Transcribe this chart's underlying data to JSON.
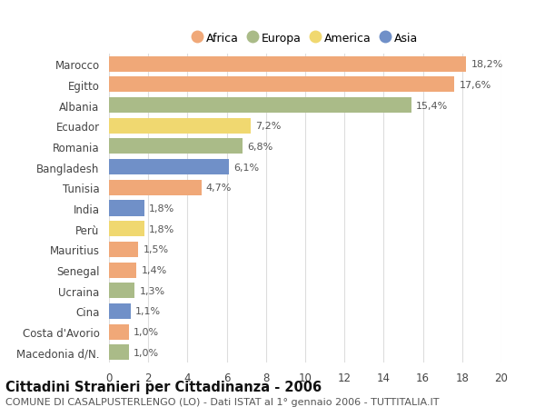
{
  "countries": [
    "Marocco",
    "Egitto",
    "Albania",
    "Ecuador",
    "Romania",
    "Bangladesh",
    "Tunisia",
    "India",
    "Perù",
    "Mauritius",
    "Senegal",
    "Ucraina",
    "Cina",
    "Costa d'Avorio",
    "Macedonia d/N."
  ],
  "values": [
    18.2,
    17.6,
    15.4,
    7.2,
    6.8,
    6.1,
    4.7,
    1.8,
    1.8,
    1.5,
    1.4,
    1.3,
    1.1,
    1.0,
    1.0
  ],
  "labels": [
    "18,2%",
    "17,6%",
    "15,4%",
    "7,2%",
    "6,8%",
    "6,1%",
    "4,7%",
    "1,8%",
    "1,8%",
    "1,5%",
    "1,4%",
    "1,3%",
    "1,1%",
    "1,0%",
    "1,0%"
  ],
  "continents": [
    "Africa",
    "Africa",
    "Europa",
    "America",
    "Europa",
    "Asia",
    "Africa",
    "Asia",
    "America",
    "Africa",
    "Africa",
    "Europa",
    "Asia",
    "Africa",
    "Europa"
  ],
  "colors": {
    "Africa": "#F0A878",
    "Europa": "#AABB88",
    "America": "#F0D870",
    "Asia": "#7090C8"
  },
  "legend_order": [
    "Africa",
    "Europa",
    "America",
    "Asia"
  ],
  "xlim": [
    0,
    20
  ],
  "xticks": [
    0,
    2,
    4,
    6,
    8,
    10,
    12,
    14,
    16,
    18,
    20
  ],
  "title": "Cittadini Stranieri per Cittadinanza - 2006",
  "subtitle": "COMUNE DI CASALPUSTERLENGO (LO) - Dati ISTAT al 1° gennaio 2006 - TUTTITALIA.IT",
  "background_color": "#FFFFFF",
  "grid_color": "#DDDDDD",
  "bar_height": 0.75,
  "label_fontsize": 8.0,
  "ytick_fontsize": 8.5,
  "xtick_fontsize": 8.5,
  "title_fontsize": 10.5,
  "subtitle_fontsize": 8.0
}
